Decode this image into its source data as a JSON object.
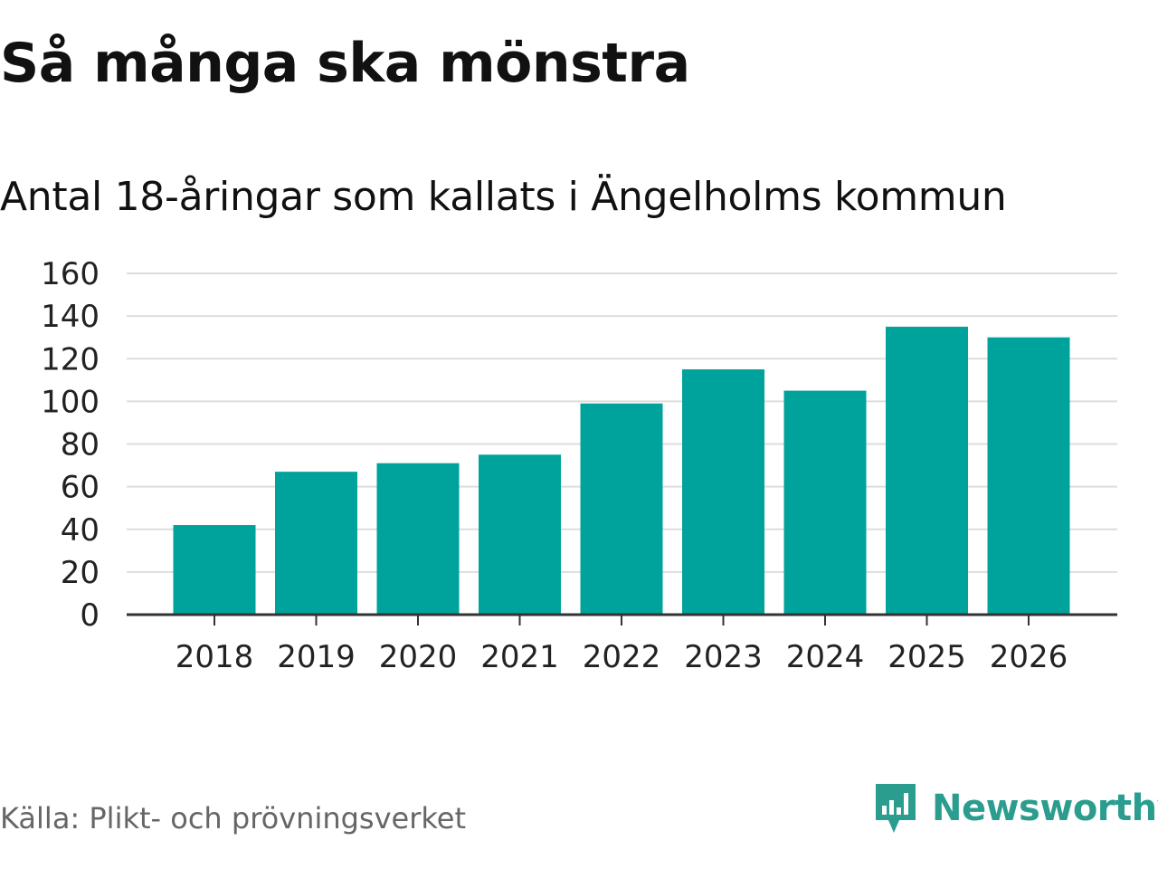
{
  "header": {
    "title": "Så många ska mönstra",
    "subtitle": "Antal 18-åringar som kallats i Ängelholms kommun"
  },
  "footer": {
    "source": "Källa: Plikt- och prövningsverket",
    "brand": "Newsworthy"
  },
  "colors": {
    "bar": "#00a39b",
    "grid": "#dddddd",
    "axis": "#333333",
    "brand": "#2a9d8f"
  },
  "chart_data": {
    "type": "bar",
    "title": "Så många ska mönstra",
    "subtitle": "Antal 18-åringar som kallats i Ängelholms kommun",
    "categories": [
      "2018",
      "2019",
      "2020",
      "2021",
      "2022",
      "2023",
      "2024",
      "2025",
      "2026"
    ],
    "values": [
      42,
      67,
      71,
      75,
      99,
      115,
      105,
      135,
      130
    ],
    "ylim": [
      0,
      160
    ],
    "yticks": [
      0,
      20,
      40,
      60,
      80,
      100,
      120,
      140,
      160
    ],
    "grid": true,
    "xlabel": "",
    "ylabel": ""
  }
}
